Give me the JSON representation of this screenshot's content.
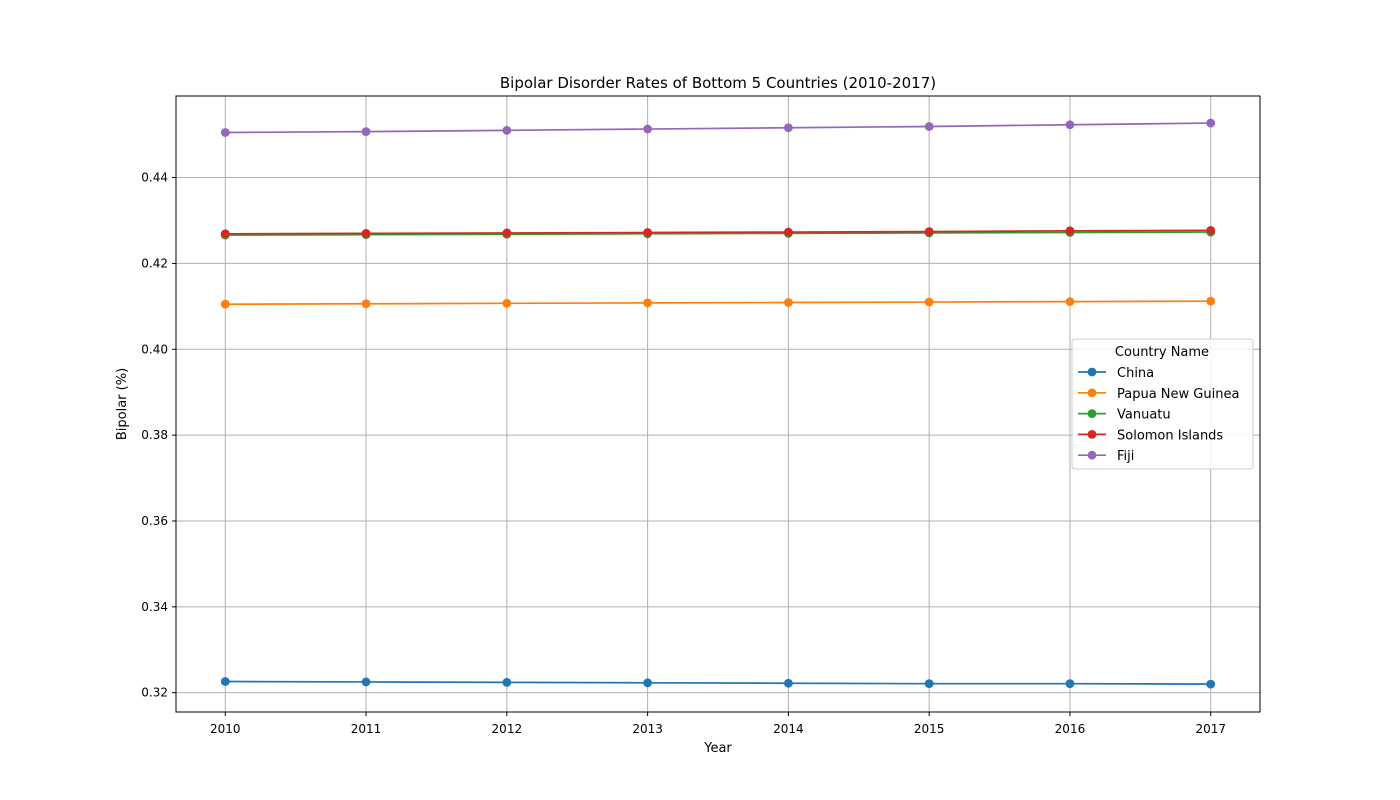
{
  "chart_data": {
    "type": "line",
    "title": "Bipolar Disorder Rates of Bottom 5 Countries (2010-2017)",
    "xlabel": "Year",
    "ylabel": "Bipolar (%)",
    "x": [
      2010,
      2011,
      2012,
      2013,
      2014,
      2015,
      2016,
      2017
    ],
    "x_ticks": [
      "2010",
      "2011",
      "2012",
      "2013",
      "2014",
      "2015",
      "2016",
      "2017"
    ],
    "y_ticks": [
      "0.32",
      "0.34",
      "0.36",
      "0.38",
      "0.40",
      "0.42",
      "0.44"
    ],
    "ylim": [
      0.3155,
      0.459
    ],
    "xlim": [
      2009.65,
      2017.35
    ],
    "grid": true,
    "legend": {
      "title": "Country Name",
      "placement": "center-right"
    },
    "series": [
      {
        "name": "China",
        "color": "#1f77b4",
        "values": [
          0.3226,
          0.3225,
          0.3224,
          0.3223,
          0.3222,
          0.3221,
          0.3221,
          0.322
        ]
      },
      {
        "name": "Papua New Guinea",
        "color": "#ff7f0e",
        "values": [
          0.4105,
          0.4106,
          0.4107,
          0.4108,
          0.4109,
          0.411,
          0.4111,
          0.4112
        ]
      },
      {
        "name": "Vanuatu",
        "color": "#2ca02c",
        "values": [
          0.4266,
          0.4267,
          0.4268,
          0.4269,
          0.427,
          0.4271,
          0.4272,
          0.4273
        ]
      },
      {
        "name": "Solomon Islands",
        "color": "#d62728",
        "values": [
          0.4269,
          0.427,
          0.4271,
          0.4272,
          0.4273,
          0.4274,
          0.4276,
          0.4277
        ]
      },
      {
        "name": "Fiji",
        "color": "#9467bd",
        "values": [
          0.4505,
          0.4507,
          0.451,
          0.4513,
          0.4516,
          0.4519,
          0.4523,
          0.4527
        ]
      }
    ]
  }
}
